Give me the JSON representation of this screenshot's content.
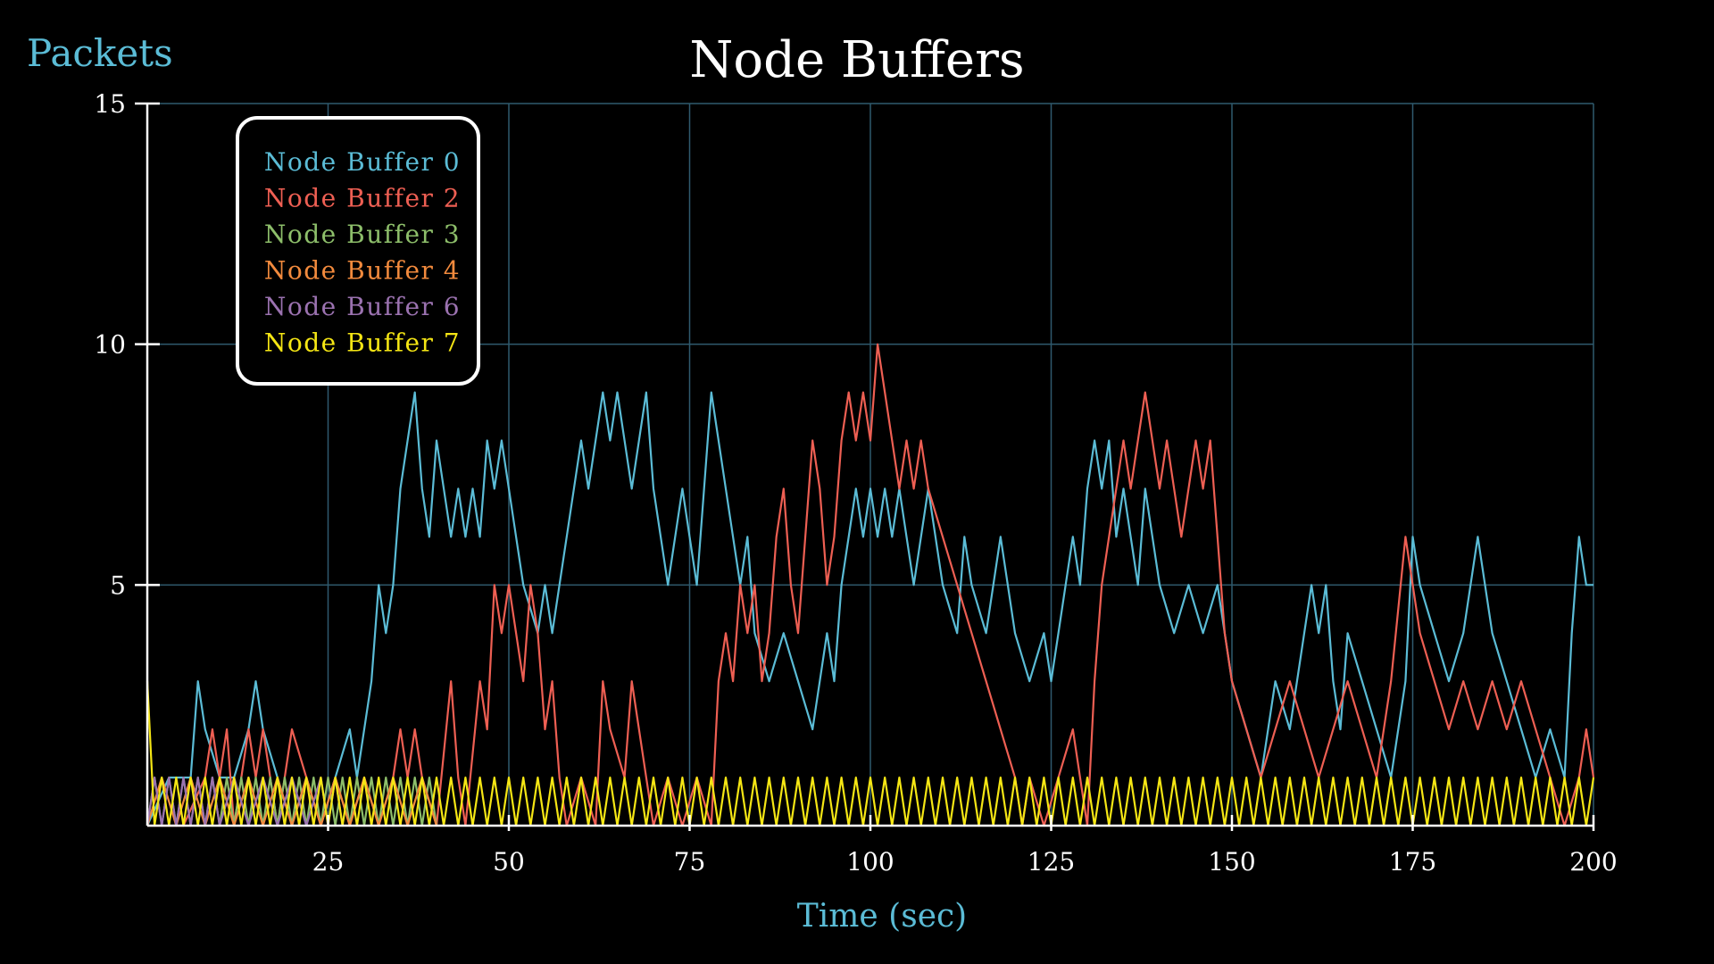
{
  "chart_data": {
    "type": "line",
    "title": "Node Buffers",
    "xlabel": "Time (sec)",
    "ylabel": "Packets",
    "xlim": [
      0,
      200
    ],
    "ylim": [
      0,
      15
    ],
    "xticks": [
      25,
      50,
      75,
      100,
      125,
      150,
      175,
      200
    ],
    "yticks": [
      5,
      10,
      15
    ],
    "grid": true,
    "legend_position": "top-left",
    "colors": {
      "background": "#000000",
      "axes": "#ffffff",
      "grid": "#2f5a6e",
      "label": "#5bbcd6"
    },
    "series": [
      {
        "name": "Node Buffer 0",
        "color": "#5bbcd6",
        "x": [
          0,
          3,
          6,
          7,
          8,
          10,
          12,
          14,
          15,
          16,
          18,
          20,
          22,
          24,
          26,
          28,
          29,
          30,
          31,
          32,
          33,
          34,
          35,
          36,
          37,
          38,
          39,
          40,
          41,
          42,
          43,
          44,
          45,
          46,
          47,
          48,
          49,
          50,
          52,
          54,
          55,
          56,
          57,
          58,
          59,
          60,
          61,
          62,
          63,
          64,
          65,
          66,
          67,
          68,
          69,
          70,
          71,
          72,
          73,
          74,
          75,
          76,
          77,
          78,
          80,
          82,
          83,
          84,
          86,
          88,
          90,
          92,
          94,
          95,
          96,
          97,
          98,
          99,
          100,
          101,
          102,
          103,
          104,
          105,
          106,
          107,
          108,
          110,
          112,
          113,
          114,
          116,
          118,
          120,
          122,
          124,
          125,
          126,
          127,
          128,
          129,
          130,
          131,
          132,
          133,
          134,
          135,
          136,
          137,
          138,
          140,
          142,
          144,
          146,
          148,
          150,
          152,
          154,
          155,
          156,
          158,
          160,
          161,
          162,
          163,
          164,
          165,
          166,
          168,
          170,
          172,
          174,
          175,
          176,
          178,
          180,
          182,
          183,
          184,
          186,
          188,
          190,
          192,
          194,
          196,
          197,
          198,
          199,
          200
        ],
        "y": [
          0,
          1,
          1,
          3,
          2,
          1,
          1,
          2,
          3,
          2,
          1,
          0,
          1,
          0,
          1,
          2,
          1,
          2,
          3,
          5,
          4,
          5,
          7,
          8,
          9,
          7,
          6,
          8,
          7,
          6,
          7,
          6,
          7,
          6,
          8,
          7,
          8,
          7,
          5,
          4,
          5,
          4,
          5,
          6,
          7,
          8,
          7,
          8,
          9,
          8,
          9,
          8,
          7,
          8,
          9,
          7,
          6,
          5,
          6,
          7,
          6,
          5,
          7,
          9,
          7,
          5,
          6,
          4,
          3,
          4,
          3,
          2,
          4,
          3,
          5,
          6,
          7,
          6,
          7,
          6,
          7,
          6,
          7,
          6,
          5,
          6,
          7,
          5,
          4,
          6,
          5,
          4,
          6,
          4,
          3,
          4,
          3,
          4,
          5,
          6,
          5,
          7,
          8,
          7,
          8,
          6,
          7,
          6,
          5,
          7,
          5,
          4,
          5,
          4,
          5,
          3,
          2,
          1,
          2,
          3,
          2,
          4,
          5,
          4,
          5,
          3,
          2,
          4,
          3,
          2,
          1,
          3,
          6,
          5,
          4,
          3,
          4,
          5,
          6,
          4,
          3,
          2,
          1,
          2,
          1,
          4,
          6,
          5,
          5
        ]
      },
      {
        "name": "Node Buffer 2",
        "color": "#ee5f53",
        "x": [
          0,
          5,
          8,
          9,
          10,
          11,
          12,
          13,
          14,
          15,
          16,
          17,
          18,
          19,
          20,
          22,
          24,
          26,
          28,
          30,
          32,
          34,
          35,
          36,
          37,
          38,
          40,
          42,
          43,
          44,
          46,
          47,
          48,
          49,
          50,
          51,
          52,
          53,
          54,
          55,
          56,
          57,
          58,
          60,
          62,
          63,
          64,
          66,
          67,
          68,
          69,
          70,
          72,
          74,
          76,
          78,
          79,
          80,
          81,
          82,
          83,
          84,
          85,
          86,
          87,
          88,
          89,
          90,
          91,
          92,
          93,
          94,
          95,
          96,
          97,
          98,
          99,
          100,
          101,
          102,
          103,
          104,
          105,
          106,
          107,
          108,
          110,
          112,
          114,
          116,
          118,
          120,
          121,
          122,
          124,
          126,
          128,
          129,
          130,
          131,
          132,
          133,
          134,
          135,
          136,
          137,
          138,
          139,
          140,
          141,
          142,
          143,
          144,
          145,
          146,
          147,
          148,
          149,
          150,
          152,
          154,
          156,
          158,
          160,
          162,
          164,
          166,
          168,
          170,
          172,
          174,
          175,
          176,
          178,
          180,
          182,
          184,
          186,
          188,
          190,
          192,
          194,
          196,
          198,
          199,
          200
        ],
        "y": [
          0,
          0,
          1,
          2,
          1,
          2,
          0,
          1,
          2,
          1,
          2,
          1,
          0,
          1,
          2,
          1,
          0,
          1,
          0,
          1,
          0,
          1,
          2,
          1,
          2,
          1,
          0,
          3,
          1,
          0,
          3,
          2,
          5,
          4,
          5,
          4,
          3,
          5,
          4,
          2,
          3,
          1,
          0,
          1,
          0,
          3,
          2,
          1,
          3,
          2,
          1,
          0,
          1,
          0,
          1,
          0,
          3,
          4,
          3,
          5,
          4,
          5,
          3,
          4,
          6,
          7,
          5,
          4,
          6,
          8,
          7,
          5,
          6,
          8,
          9,
          8,
          9,
          8,
          10,
          9,
          8,
          7,
          8,
          7,
          8,
          7,
          6,
          5,
          4,
          3,
          2,
          1,
          0,
          1,
          0,
          1,
          2,
          1,
          0,
          3,
          5,
          6,
          7,
          8,
          7,
          8,
          9,
          8,
          7,
          8,
          7,
          6,
          7,
          8,
          7,
          8,
          6,
          4,
          3,
          2,
          1,
          2,
          3,
          2,
          1,
          2,
          3,
          2,
          1,
          3,
          6,
          5,
          4,
          3,
          2,
          3,
          2,
          3,
          2,
          3,
          2,
          1,
          0,
          1,
          2,
          1
        ]
      },
      {
        "name": "Node Buffer 3",
        "color": "#8dbe6a",
        "x": [
          0,
          1,
          2,
          3,
          4,
          5,
          6,
          7,
          8,
          9,
          10,
          11,
          12,
          13,
          14,
          15,
          16,
          17,
          18,
          19,
          20,
          21,
          22,
          23,
          24,
          25,
          26,
          27,
          28,
          29,
          30,
          31,
          32,
          33,
          34,
          35,
          36,
          37,
          38,
          39,
          40
        ],
        "y": [
          0,
          1,
          0,
          1,
          0,
          1,
          0,
          1,
          0,
          1,
          0,
          1,
          0,
          1,
          0,
          1,
          0,
          1,
          0,
          1,
          0,
          1,
          0,
          1,
          0,
          1,
          0,
          1,
          0,
          1,
          0,
          1,
          0,
          1,
          0,
          1,
          0,
          1,
          0,
          1,
          0
        ]
      },
      {
        "name": "Node Buffer 4",
        "color": "#f28a3d",
        "x": [
          0,
          2,
          4,
          6,
          8,
          10,
          12,
          14,
          16,
          18,
          20,
          22,
          24,
          26,
          28,
          30,
          32,
          34,
          36,
          38,
          40
        ],
        "y": [
          0,
          1,
          0,
          1,
          0,
          1,
          0,
          1,
          0,
          1,
          0,
          1,
          0,
          1,
          0,
          1,
          0,
          1,
          0,
          1,
          0
        ]
      },
      {
        "name": "Node Buffer 6",
        "color": "#9b72b0",
        "x": [
          0,
          1,
          2,
          3,
          4,
          5,
          6,
          7,
          8,
          9,
          10,
          12,
          14,
          16,
          18,
          20,
          22,
          24,
          25,
          26,
          27
        ],
        "y": [
          0,
          1,
          0,
          1,
          0,
          1,
          0,
          1,
          0,
          1,
          0,
          1,
          0,
          1,
          0,
          1,
          0,
          1,
          0,
          1,
          0
        ]
      },
      {
        "name": "Node Buffer 7",
        "color": "#f5e614",
        "x": [
          0,
          1,
          2,
          3,
          4,
          5,
          6,
          7,
          8,
          9,
          10,
          11,
          12,
          13,
          14,
          15,
          16,
          17,
          18,
          19,
          20,
          21,
          22,
          23,
          24,
          25,
          26,
          27,
          28,
          29,
          30,
          31,
          32,
          33,
          34,
          35,
          36,
          37,
          38,
          39,
          40,
          41,
          42,
          43,
          44,
          45,
          46,
          47,
          48,
          49,
          50,
          51,
          52,
          53,
          54,
          55,
          56,
          57,
          58,
          59,
          60,
          61,
          62,
          63,
          64,
          65,
          66,
          67,
          68,
          69,
          70,
          71,
          72,
          73,
          74,
          75,
          76,
          77,
          78,
          79,
          80,
          81,
          82,
          83,
          84,
          85,
          86,
          87,
          88,
          89,
          90,
          91,
          92,
          93,
          94,
          95,
          96,
          97,
          98,
          99,
          100,
          101,
          102,
          103,
          104,
          105,
          106,
          107,
          108,
          109,
          110,
          111,
          112,
          113,
          114,
          115,
          116,
          117,
          118,
          119,
          120,
          121,
          122,
          123,
          124,
          125,
          126,
          127,
          128,
          129,
          130,
          131,
          132,
          133,
          134,
          135,
          136,
          137,
          138,
          139,
          140,
          141,
          142,
          143,
          144,
          145,
          146,
          147,
          148,
          149,
          150,
          151,
          152,
          153,
          154,
          155,
          156,
          157,
          158,
          159,
          160,
          161,
          162,
          163,
          164,
          165,
          166,
          167,
          168,
          169,
          170,
          171,
          172,
          173,
          174,
          175,
          176,
          177,
          178,
          179,
          180,
          181,
          182,
          183,
          184,
          185,
          186,
          187,
          188,
          189,
          190,
          191,
          192,
          193,
          194,
          195,
          196,
          197,
          198,
          199,
          200
        ],
        "y": [
          3,
          0,
          1,
          0,
          1,
          0,
          1,
          0,
          1,
          0,
          1,
          0,
          1,
          0,
          1,
          0,
          1,
          0,
          1,
          0,
          1,
          0,
          1,
          0,
          1,
          0,
          1,
          0,
          1,
          0,
          1,
          0,
          1,
          0,
          1,
          0,
          1,
          0,
          1,
          0,
          1,
          0,
          1,
          0,
          1,
          0,
          1,
          0,
          1,
          0,
          1,
          0,
          1,
          0,
          1,
          0,
          1,
          0,
          1,
          0,
          1,
          0,
          1,
          0,
          1,
          0,
          1,
          0,
          1,
          0,
          1,
          0,
          1,
          0,
          1,
          0,
          1,
          0,
          1,
          0,
          1,
          0,
          1,
          0,
          1,
          0,
          1,
          0,
          1,
          0,
          1,
          0,
          1,
          0,
          1,
          0,
          1,
          0,
          1,
          0,
          1,
          0,
          1,
          0,
          1,
          0,
          1,
          0,
          1,
          0,
          1,
          0,
          1,
          0,
          1,
          0,
          1,
          0,
          1,
          0,
          1,
          0,
          1,
          0,
          1,
          0,
          1,
          0,
          1,
          0,
          1,
          0,
          1,
          0,
          1,
          0,
          1,
          0,
          1,
          0,
          1,
          0,
          1,
          0,
          1,
          0,
          1,
          0,
          1,
          0,
          1,
          0,
          1,
          0,
          1,
          0,
          1,
          0,
          1,
          0,
          1,
          0,
          1,
          0,
          1,
          0,
          1,
          0,
          1,
          0,
          1,
          0,
          1,
          0,
          1,
          0,
          1,
          0,
          1,
          0,
          1,
          0,
          1,
          0,
          1,
          0,
          1,
          0,
          1,
          0,
          1,
          0,
          1,
          0,
          1,
          0,
          1,
          0,
          1,
          0,
          1
        ]
      }
    ]
  }
}
